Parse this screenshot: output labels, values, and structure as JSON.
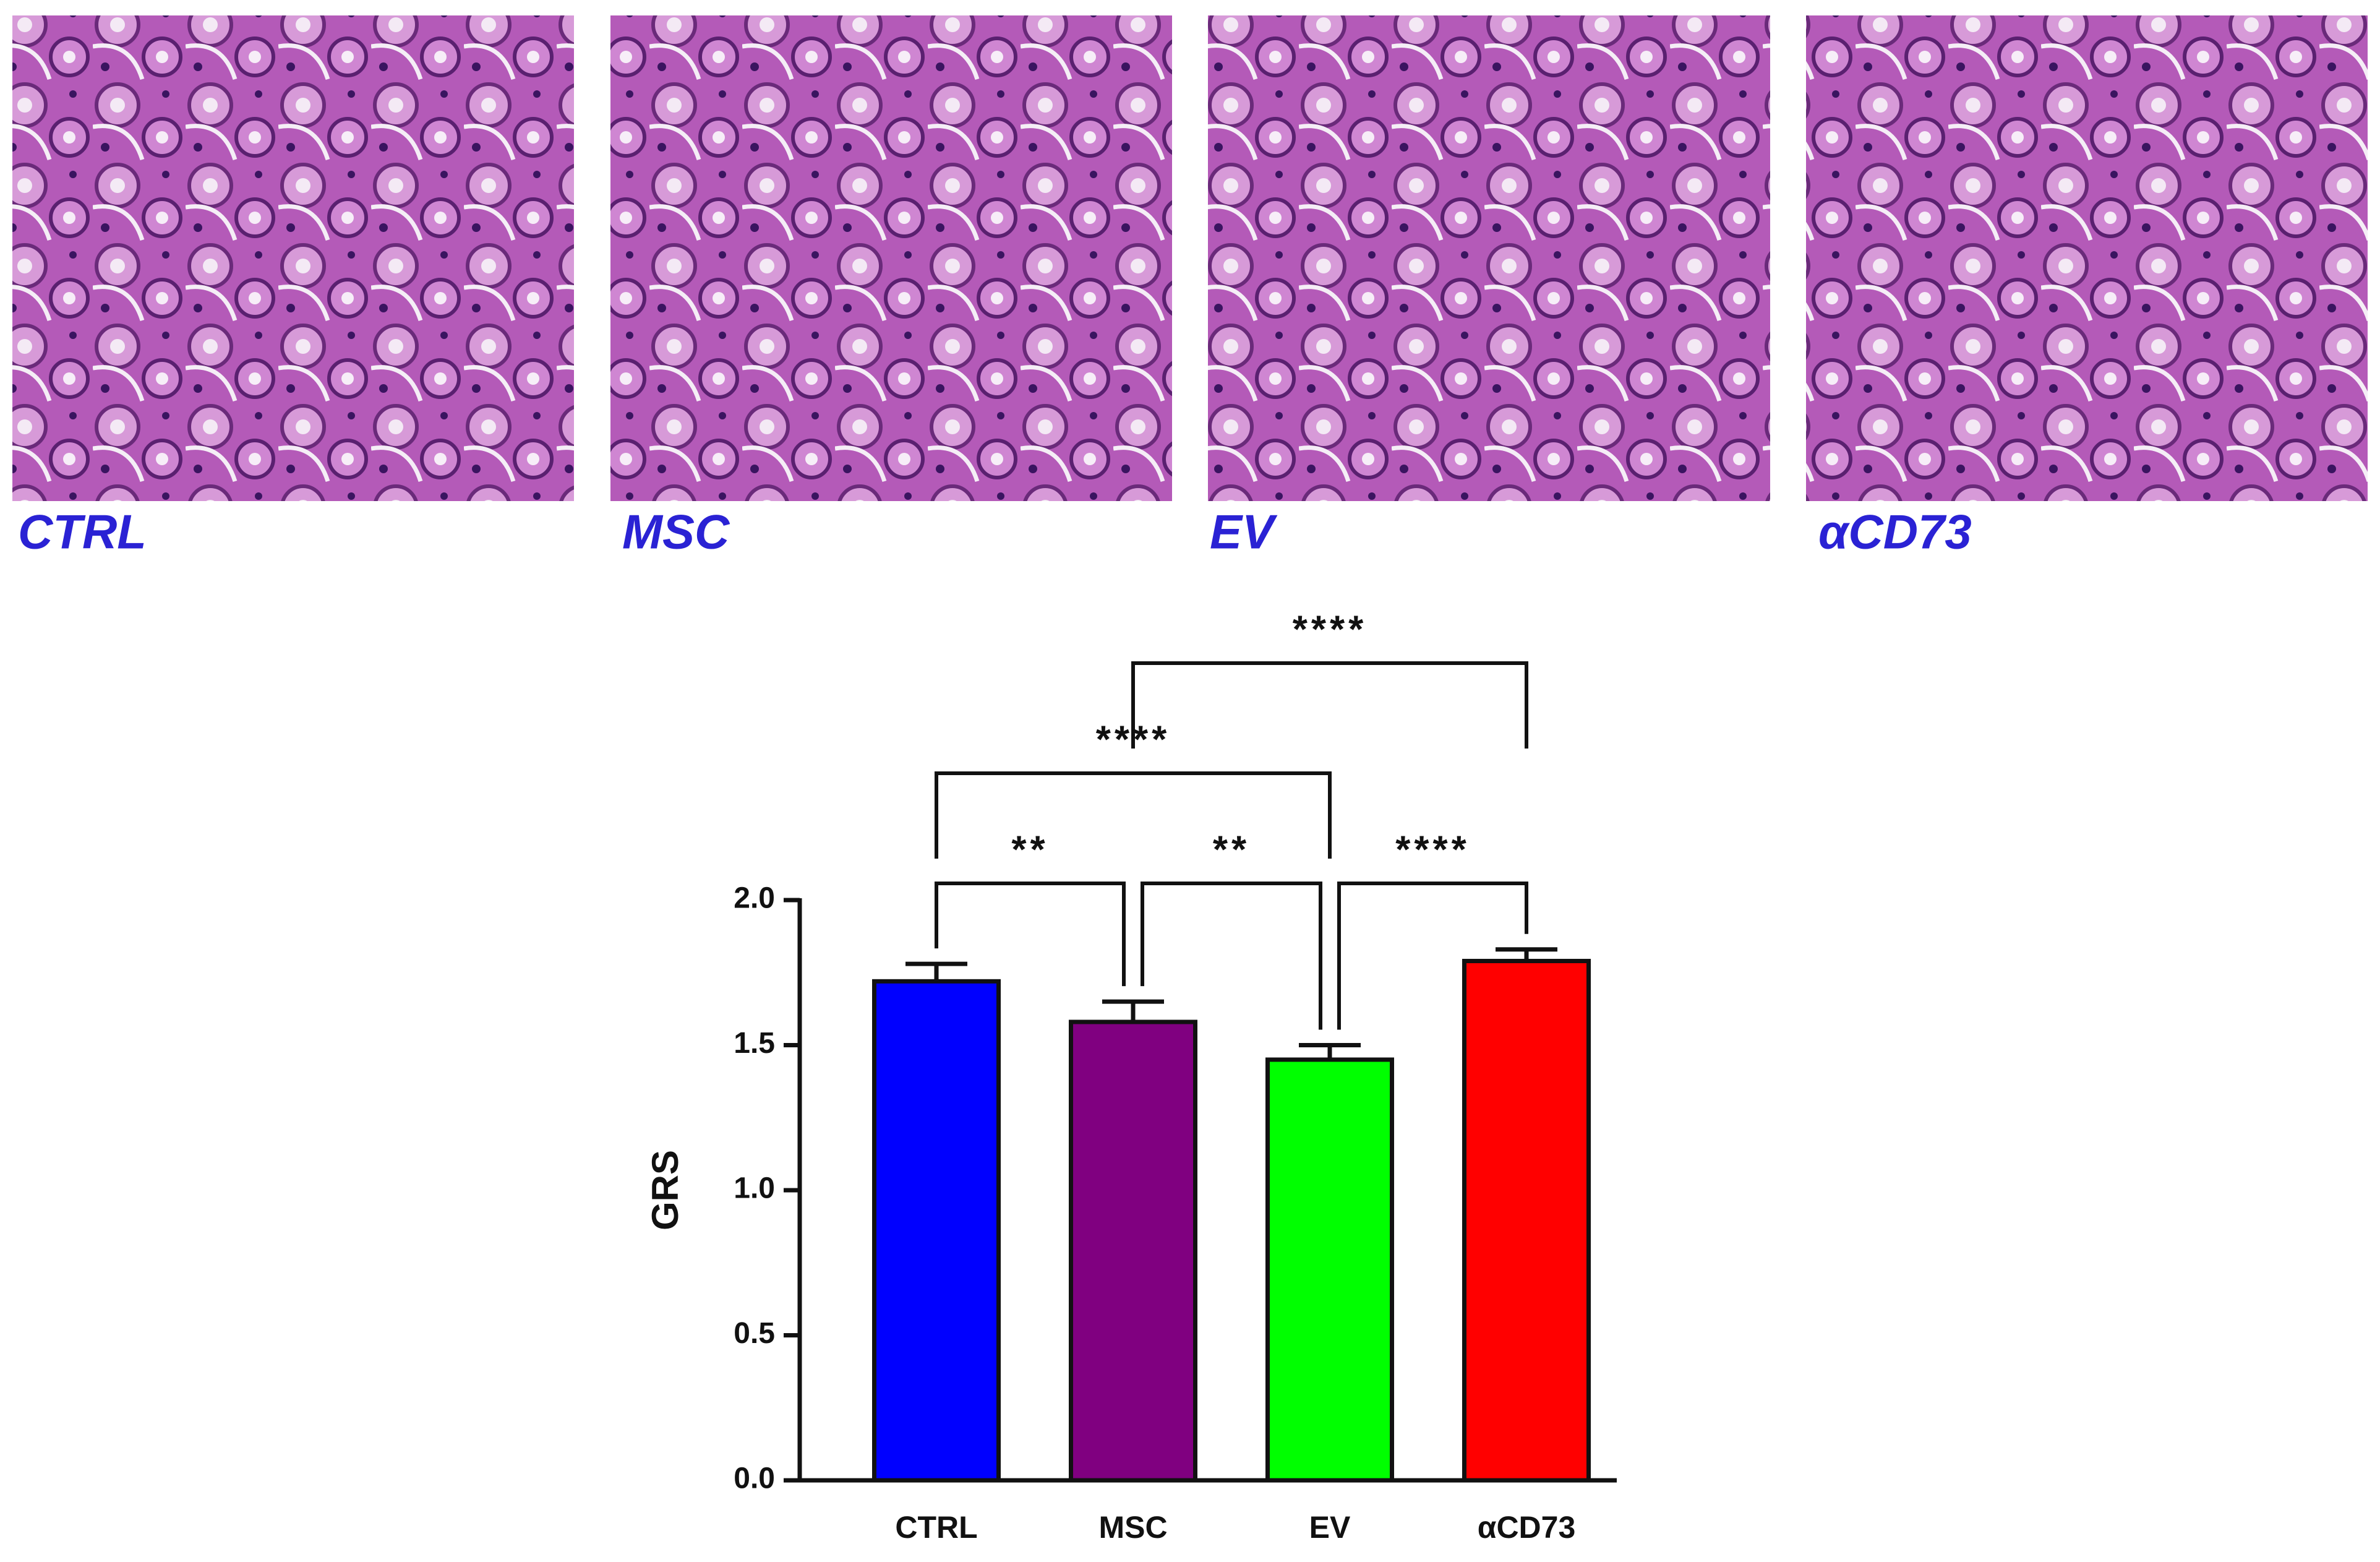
{
  "image_labels": [
    "CTRL",
    "MSC",
    "EV",
    "αCD73"
  ],
  "chart_data": {
    "type": "bar",
    "ylabel": "GRS",
    "categories": [
      "CTRL",
      "MSC",
      "EV",
      "αCD73"
    ],
    "values": [
      1.72,
      1.58,
      1.45,
      1.79
    ],
    "errors": [
      0.06,
      0.07,
      0.05,
      0.04
    ],
    "colors": [
      "#0000ff",
      "#800080",
      "#00ff00",
      "#ff0000"
    ],
    "ylim": [
      0,
      2.0
    ],
    "yticks": [
      {
        "value": 0,
        "label": "0.0"
      },
      0.5,
      {
        "value": 1.0,
        "label": "1.0"
      },
      1.5,
      {
        "value": 2.0,
        "label": "2.0"
      }
    ],
    "comparisons": [
      {
        "from": "CTRL",
        "to": "MSC",
        "label": "**"
      },
      {
        "from": "MSC",
        "to": "EV",
        "label": "**"
      },
      {
        "from": "EV",
        "to": "αCD73",
        "label": "****"
      },
      {
        "from": "CTRL",
        "to": "EV",
        "label": "****"
      },
      {
        "from": "MSC",
        "to": "αCD73",
        "label": "****"
      }
    ]
  }
}
